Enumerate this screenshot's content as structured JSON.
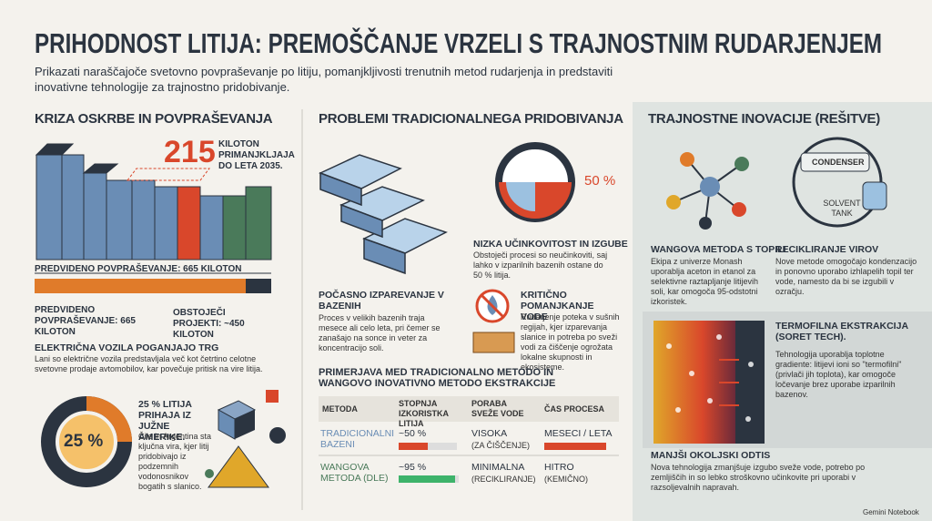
{
  "header": {
    "title": "PRIHODNOST LITIJA: PREMOŠČANJE VRZELI S TRAJNOSTNIM RUDARJENJEM",
    "subtitle": "Prikazati naraščajoče svetovno povpraševanje po litiju, pomanjkljivosti trenutnih metod rudarjenja in predstaviti inovativne tehnologije za trajnostno pridobivanje."
  },
  "supply": {
    "heading": "KRIZA OSKRBE IN POVPRAŠEVANJA",
    "big_number": "215",
    "big_label": "KILOTON PRIMANJKLJAJA DO LETA 2035.",
    "demand_bar_label": "PREDVIDENO POVPRAŠEVANJE: 665 KILOTON",
    "demand_label": "PREDVIDENO POVPRAŠEVANJE: 665 KILOTON",
    "projects_label": "OBSTOJEČI PROJEKTI: ~450 KILOTON",
    "ev_heading": "ELEKTRIČNA VOZILA POGANJAJO TRG",
    "ev_text": "Lani so električne vozila predstavljala več kot četrtino celotne svetovne prodaje avtomobilov, kar povečuje pritisk na vire litija.",
    "share_value": "25 %",
    "share_heading": "25 % LITIJA PRIHAJA IZ JUŽNE AMERIKE.",
    "share_text": "Čile in Argentina sta ključna vira, kjer litij pridobivajo iz podzemnih vodonosnikov bogatih s slanico."
  },
  "problems": {
    "heading": "PROBLEMI TRADICIONALNEGA PRIDOBIVANJA",
    "percent": "50 %",
    "inefficiency_heading": "NIZKA UČINKOVITOST IN IZGUBE",
    "inefficiency_text": "Obstoječi procesi so neučinkoviti, saj lahko v izparilnih bazenih ostane do 50 % litija.",
    "evaporation_heading": "POČASNO IZPAREVANJE V BAZENIH",
    "evaporation_text": "Proces v velikih bazenih traja mesece ali celo leta, pri čemer se zanašajo na sonce in veter za koncentracijo soli.",
    "water_heading": "KRITIČNO POMANJKANJE VODE",
    "water_text": "Rudarjenje poteka v sušnih regijah, kjer izparevanja slanice in potreba po sveži vodi za čiščenje ogrožata lokalne skupnosti in ekosisteme."
  },
  "comparison": {
    "heading": "PRIMERJAVA MED TRADICIONALNO METODO IN WANGOVO INOVATIVNO METODO EKSTRAKCIJE",
    "columns": [
      "METODA",
      "STOPNJA IZKORISTKA LITIJA",
      "PORABA SVEŽE VODE",
      "ČAS PROCESA"
    ],
    "rows": [
      {
        "method": "TRADICIONALNI BAZENI",
        "recovery": "~50 %",
        "water": "VISOKA",
        "water_note": "(ZA ČIŠČENJE)",
        "time": "MESECI / LETA"
      },
      {
        "method": "WANGOVA METODA (DLE)",
        "recovery": "~95 %",
        "water": "MINIMALNA",
        "water_note": "(RECIKLIRANJE)",
        "time": "HITRO",
        "time_note": "(KEMIČNO)"
      }
    ]
  },
  "innovations": {
    "heading": "TRAJNOSTNE INOVACIJE (REŠITVE)",
    "condenser": "CONDENSER",
    "solvent_tank": "SOLVENT TANK",
    "items": [
      {
        "title": "WANGOVA METODA S TOPILI",
        "text": "Ekipa z univerze Monash uporablja aceton in etanol za selektivne raztapljanje litijevih soli, kar omogoča 95-odstotni izkoristek."
      },
      {
        "title": "RECIKLIRANJE VIROV",
        "text": "Nove metode omogočajo kondenzacijo in ponovno uporabo izhlapelih topil ter vode, namesto da bi se izgubili v ozračju."
      },
      {
        "title": "TERMOFILNA EKSTRAKCIJA (SORET TECH).",
        "text": "Tehnologija uporablja toplotne gradiente: litijevi ioni so \"termofilni\" (privlači jih toplota), kar omogoče ločevanje brez uporabe izparilnih bazenov."
      },
      {
        "title": "MANJŠI OKOLJSKI ODTIS",
        "text": "Nova tehnologija zmanjšuje izgubo sveže vode, potrebo po zemljiščih in so lebko stroškovno učinkovite pri uporabi v razsoljevalnih napravah."
      }
    ]
  },
  "footer": "Gemini Notebook"
}
